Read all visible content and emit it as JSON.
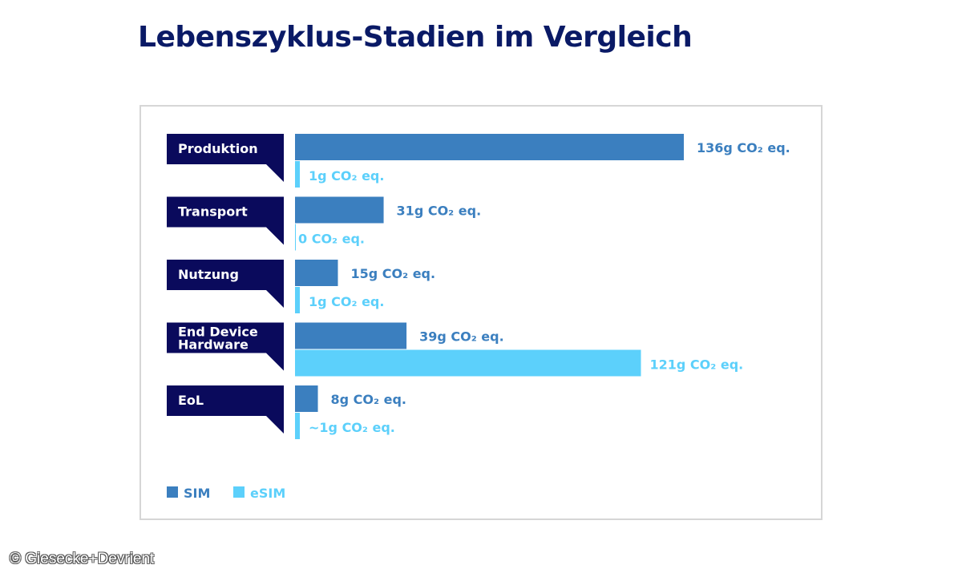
{
  "title": "Lebenszyklus-Stadien im Vergleich",
  "copyright": "© Giesecke+Devrient",
  "colors": {
    "sim": "#3b7fbf",
    "esim": "#5cd0fb",
    "label_bg": "#0a0a5c",
    "title": "#0a1a66"
  },
  "chart_data": {
    "type": "bar",
    "orientation": "horizontal",
    "title": "Lebenszyklus-Stadien im Vergleich",
    "unit": "g CO₂ eq.",
    "xlim": [
      0,
      136
    ],
    "categories": [
      [
        "Produktion"
      ],
      [
        "Transport"
      ],
      [
        "Nutzung"
      ],
      [
        "End Device",
        "Hardware"
      ],
      [
        "EoL"
      ]
    ],
    "series": [
      {
        "name": "SIM",
        "values": [
          136,
          31,
          15,
          39,
          8
        ],
        "labels": [
          "136g CO₂ eq.",
          "31g CO₂ eq.",
          "15g CO₂ eq.",
          "39g CO₂ eq.",
          "8g CO₂ eq."
        ]
      },
      {
        "name": "eSIM",
        "values": [
          1,
          0,
          1,
          121,
          1
        ],
        "labels": [
          "1g CO₂ eq.",
          "0 CO₂ eq.",
          "1g CO₂ eq.",
          "121g CO₂ eq.",
          "~1g CO₂ eq."
        ]
      }
    ],
    "legend": [
      {
        "name": "SIM",
        "position": "bottom-left"
      },
      {
        "name": "eSIM",
        "position": "bottom-left"
      }
    ]
  }
}
